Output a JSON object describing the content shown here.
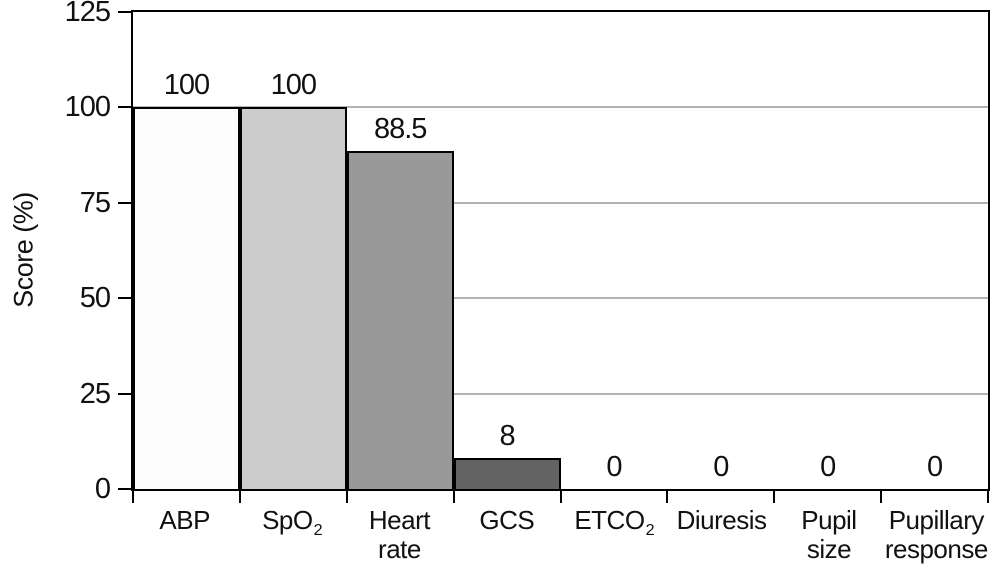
{
  "chart_data": {
    "type": "bar",
    "title": "",
    "xlabel": "",
    "ylabel": "Score (%)",
    "ylim": [
      0,
      125
    ],
    "yticks": [
      0,
      25,
      50,
      75,
      100,
      125
    ],
    "grid": true,
    "legend_position": "none",
    "categories": [
      "ABP",
      "SpO2",
      "Heart rate",
      "GCS",
      "ETCO2",
      "Diuresis",
      "Pupil size",
      "Pupillary response"
    ],
    "category_labels": [
      {
        "line1": "ABP",
        "sub": "",
        "line2": ""
      },
      {
        "line1": "SpO",
        "sub": "2",
        "line2": ""
      },
      {
        "line1": "Heart",
        "sub": "",
        "line2": "rate"
      },
      {
        "line1": "GCS",
        "sub": "",
        "line2": ""
      },
      {
        "line1": "ETCO",
        "sub": "2",
        "line2": ""
      },
      {
        "line1": "Diuresis",
        "sub": "",
        "line2": ""
      },
      {
        "line1": "Pupil",
        "sub": "",
        "line2": "size"
      },
      {
        "line1": "Pupillary",
        "sub": "",
        "line2": "response"
      }
    ],
    "values": [
      100,
      100,
      88.5,
      8,
      0,
      0,
      0,
      0
    ],
    "value_labels": [
      "100",
      "100",
      "88.5",
      "8",
      "0",
      "0",
      "0",
      "0"
    ],
    "bar_colors": [
      "#fdfdfd",
      "#cccccc",
      "#999999",
      "#636363",
      null,
      null,
      null,
      null
    ],
    "bar_border_color": "#000000",
    "axis_color": "#000000",
    "gridline_color": "#b3b3b3",
    "text_color": "#111111"
  }
}
